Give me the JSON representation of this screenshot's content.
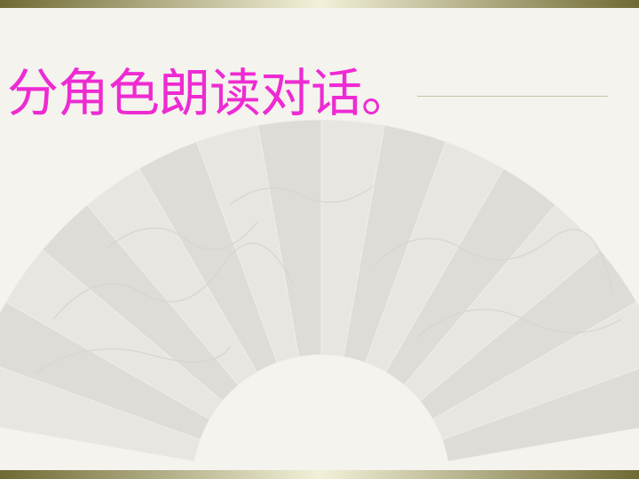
{
  "slide": {
    "title": "分角色朗读对话。"
  },
  "colors": {
    "background": "#f4f3ee",
    "bar_dark": "#6f6a33",
    "bar_light": "#f2f0d8",
    "title": "#ee2bd2",
    "fan_fill": "#e7e6e1",
    "fan_fold": "#dedcd6"
  },
  "decor": {
    "fan_image": "folding-fan-landscape-painting"
  }
}
